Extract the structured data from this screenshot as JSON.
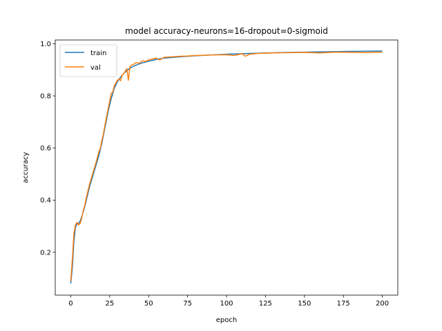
{
  "chart_data": {
    "type": "line",
    "title": "model accuracy-neurons=16-dropout=0-sigmoid",
    "xlabel": "epoch",
    "ylabel": "accuracy",
    "xlim": [
      -9.95,
      209.95
    ],
    "ylim": [
      0.0355,
      1.0145
    ],
    "xticks": [
      0,
      25,
      50,
      75,
      100,
      125,
      150,
      175,
      200
    ],
    "yticks": [
      0.2,
      0.4,
      0.6,
      0.8,
      1.0
    ],
    "xtick_labels": [
      "0",
      "25",
      "50",
      "75",
      "100",
      "125",
      "150",
      "175",
      "200"
    ],
    "ytick_labels": [
      "0.2",
      "0.4",
      "0.6",
      "0.8",
      "1.0"
    ],
    "grid": false,
    "legend_position": "top-left",
    "colors": {
      "train": "#1f77b4",
      "val": "#ff7f0e"
    },
    "series": [
      {
        "name": "train",
        "x": [
          0,
          1,
          2,
          3,
          4,
          5,
          6,
          7,
          8,
          9,
          10,
          12,
          14,
          16,
          18,
          20,
          22,
          24,
          26,
          28,
          30,
          32,
          34,
          36,
          38,
          40,
          42,
          45,
          50,
          55,
          60,
          70,
          80,
          90,
          100,
          120,
          140,
          160,
          180,
          200
        ],
        "y": [
          0.08,
          0.14,
          0.24,
          0.295,
          0.31,
          0.31,
          0.32,
          0.335,
          0.355,
          0.375,
          0.4,
          0.45,
          0.49,
          0.53,
          0.57,
          0.62,
          0.68,
          0.74,
          0.79,
          0.83,
          0.855,
          0.872,
          0.886,
          0.897,
          0.906,
          0.913,
          0.918,
          0.925,
          0.933,
          0.94,
          0.945,
          0.95,
          0.954,
          0.957,
          0.96,
          0.964,
          0.967,
          0.969,
          0.971,
          0.972
        ]
      },
      {
        "name": "val",
        "x": [
          0,
          1,
          2,
          3,
          4,
          5,
          6,
          7,
          8,
          9,
          10,
          12,
          14,
          16,
          18,
          19,
          20,
          21,
          22,
          24,
          26,
          27,
          28,
          30,
          31,
          32,
          33,
          34,
          35,
          36,
          37,
          38,
          39,
          40,
          42,
          44,
          46,
          48,
          50,
          55,
          57,
          60,
          65,
          70,
          75,
          80,
          90,
          100,
          105,
          110,
          112,
          115,
          120,
          130,
          140,
          150,
          160,
          170,
          180,
          190,
          200
        ],
        "y": [
          0.09,
          0.17,
          0.27,
          0.305,
          0.315,
          0.305,
          0.31,
          0.33,
          0.36,
          0.38,
          0.41,
          0.46,
          0.5,
          0.54,
          0.585,
          0.6,
          0.63,
          0.655,
          0.69,
          0.75,
          0.81,
          0.815,
          0.84,
          0.86,
          0.865,
          0.858,
          0.88,
          0.885,
          0.895,
          0.905,
          0.86,
          0.912,
          0.918,
          0.92,
          0.928,
          0.925,
          0.935,
          0.932,
          0.938,
          0.945,
          0.938,
          0.948,
          0.95,
          0.952,
          0.953,
          0.955,
          0.957,
          0.958,
          0.955,
          0.962,
          0.952,
          0.96,
          0.963,
          0.965,
          0.966,
          0.967,
          0.965,
          0.968,
          0.967,
          0.966,
          0.968
        ]
      }
    ]
  }
}
